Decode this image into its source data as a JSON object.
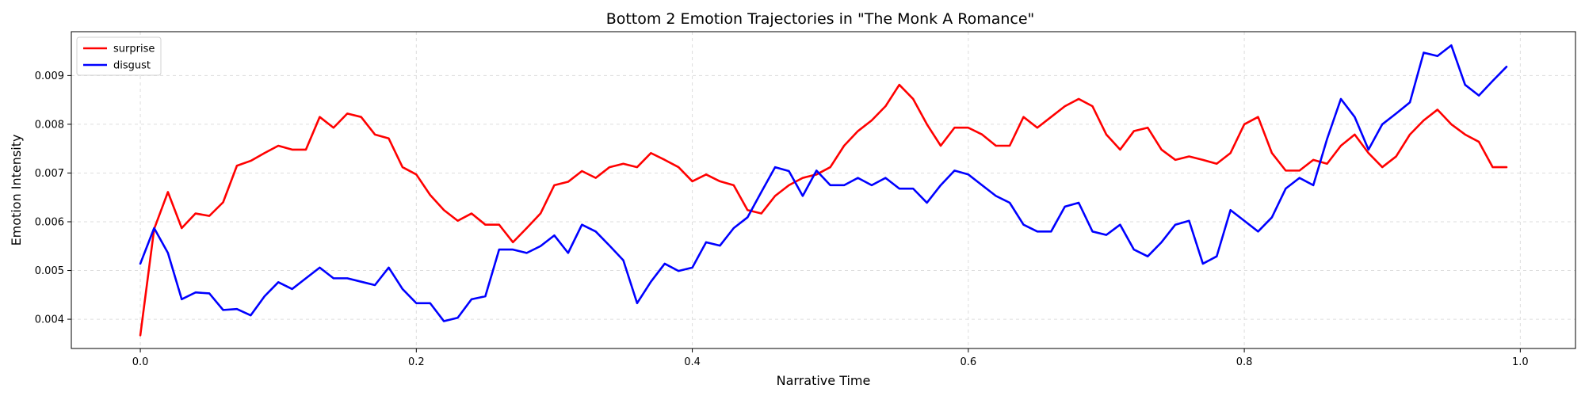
{
  "chart_data": {
    "type": "line",
    "title": "Bottom 2 Emotion Trajectories in \"The Monk A Romance\"",
    "xlabel": "Narrative Time",
    "ylabel": "Emotion Intensity",
    "xlim": [
      -0.05,
      1.04
    ],
    "ylim": [
      0.0034,
      0.0099
    ],
    "xticks": [
      0.0,
      0.2,
      0.4,
      0.6,
      0.8,
      1.0
    ],
    "xtick_labels": [
      "0.0",
      "0.2",
      "0.4",
      "0.6",
      "0.8",
      "1.0"
    ],
    "yticks": [
      0.004,
      0.005,
      0.006,
      0.007,
      0.008,
      0.009
    ],
    "ytick_labels": [
      "0.004",
      "0.005",
      "0.006",
      "0.007",
      "0.008",
      "0.009"
    ],
    "grid": true,
    "legend_position": "top-left",
    "x": [
      0.0,
      0.01,
      0.02,
      0.03,
      0.04,
      0.05,
      0.06,
      0.07,
      0.08,
      0.09,
      0.1,
      0.11,
      0.12,
      0.13,
      0.14,
      0.15,
      0.16,
      0.17,
      0.18,
      0.19,
      0.2,
      0.21,
      0.22,
      0.23,
      0.24,
      0.25,
      0.26,
      0.27,
      0.28,
      0.29,
      0.3,
      0.31,
      0.32,
      0.33,
      0.34,
      0.35,
      0.36,
      0.37,
      0.38,
      0.39,
      0.4,
      0.41,
      0.42,
      0.43,
      0.44,
      0.45,
      0.46,
      0.47,
      0.48,
      0.49,
      0.5,
      0.51,
      0.52,
      0.53,
      0.54,
      0.55,
      0.56,
      0.57,
      0.58,
      0.59,
      0.6,
      0.61,
      0.62,
      0.63,
      0.64,
      0.65,
      0.66,
      0.67,
      0.68,
      0.69,
      0.7,
      0.71,
      0.72,
      0.73,
      0.74,
      0.75,
      0.76,
      0.77,
      0.78,
      0.79,
      0.8,
      0.81,
      0.82,
      0.83,
      0.84,
      0.85,
      0.86,
      0.87,
      0.88,
      0.89,
      0.9,
      0.91,
      0.92,
      0.93,
      0.94,
      0.95,
      0.96,
      0.97,
      0.98,
      0.99
    ],
    "series": [
      {
        "name": "surprise",
        "color": "#ff0000",
        "values": [
          0.00367,
          0.00585,
          0.00661,
          0.00587,
          0.00617,
          0.00612,
          0.0064,
          0.00715,
          0.00725,
          0.00741,
          0.00756,
          0.00748,
          0.00748,
          0.00815,
          0.00793,
          0.00822,
          0.00815,
          0.00779,
          0.00771,
          0.00712,
          0.00697,
          0.00655,
          0.00624,
          0.00602,
          0.00617,
          0.00594,
          0.00594,
          0.00558,
          0.00587,
          0.00617,
          0.00675,
          0.00682,
          0.00704,
          0.0069,
          0.00712,
          0.00719,
          0.00712,
          0.00741,
          0.00727,
          0.00712,
          0.00683,
          0.00697,
          0.00683,
          0.00675,
          0.00624,
          0.00617,
          0.00653,
          0.00675,
          0.0069,
          0.00697,
          0.00712,
          0.00756,
          0.00786,
          0.00808,
          0.00837,
          0.00881,
          0.00852,
          0.008,
          0.00756,
          0.00793,
          0.00793,
          0.00779,
          0.00756,
          0.00756,
          0.00815,
          0.00793,
          0.00815,
          0.00837,
          0.00852,
          0.00837,
          0.00779,
          0.00748,
          0.00786,
          0.00793,
          0.00748,
          0.00727,
          0.00734,
          0.00727,
          0.00719,
          0.00741,
          0.008,
          0.00815,
          0.00741,
          0.00705,
          0.00705,
          0.00727,
          0.00719,
          0.00756,
          0.00779,
          0.00741,
          0.00712,
          0.00734,
          0.00779,
          0.00808,
          0.0083,
          0.008,
          0.00779,
          0.00764,
          0.00712,
          0.00712
        ]
      },
      {
        "name": "disgust",
        "color": "#0000ff",
        "values": [
          0.00514,
          0.00587,
          0.00536,
          0.00441,
          0.00455,
          0.00453,
          0.00419,
          0.00421,
          0.00408,
          0.00447,
          0.00476,
          0.00462,
          0.00484,
          0.00506,
          0.00484,
          0.00484,
          0.00477,
          0.0047,
          0.00506,
          0.00462,
          0.00433,
          0.00433,
          0.00396,
          0.00403,
          0.00441,
          0.00447,
          0.00543,
          0.00543,
          0.00536,
          0.0055,
          0.00572,
          0.00536,
          0.00594,
          0.0058,
          0.00551,
          0.00521,
          0.00433,
          0.00477,
          0.00514,
          0.00499,
          0.00506,
          0.00558,
          0.00551,
          0.00587,
          0.00609,
          0.00661,
          0.00712,
          0.00704,
          0.00653,
          0.00705,
          0.00675,
          0.00675,
          0.0069,
          0.00675,
          0.0069,
          0.00668,
          0.00668,
          0.00639,
          0.00675,
          0.00705,
          0.00697,
          0.00675,
          0.00653,
          0.00639,
          0.00594,
          0.0058,
          0.0058,
          0.00631,
          0.00639,
          0.0058,
          0.00573,
          0.00594,
          0.00543,
          0.00529,
          0.00558,
          0.00594,
          0.00602,
          0.00514,
          0.00529,
          0.00624,
          0.00602,
          0.0058,
          0.00609,
          0.00668,
          0.0069,
          0.00675,
          0.0077,
          0.00852,
          0.00815,
          0.00748,
          0.008,
          0.00822,
          0.00845,
          0.00947,
          0.0094,
          0.00962,
          0.00881,
          0.00859,
          0.00889,
          0.00918
        ]
      }
    ]
  }
}
